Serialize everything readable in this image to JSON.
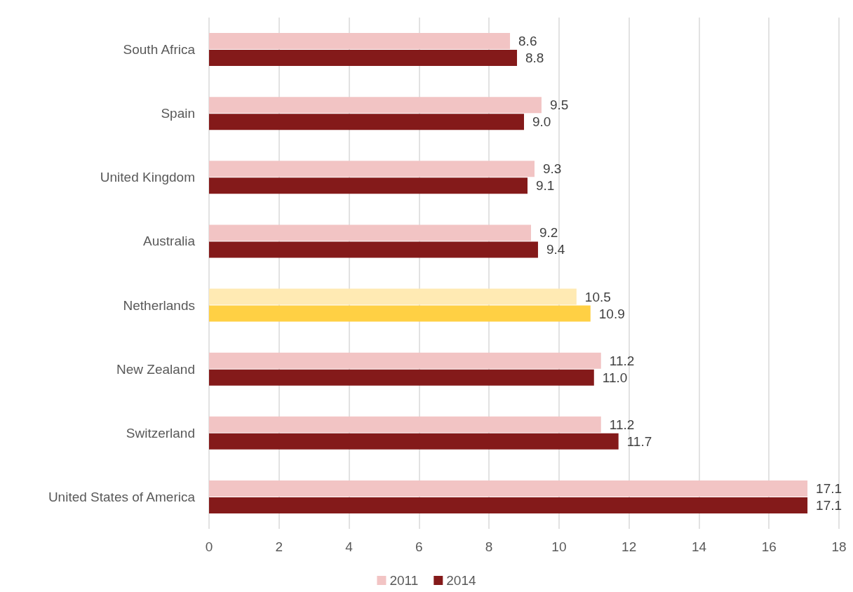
{
  "chart_data": {
    "type": "bar",
    "orientation": "horizontal",
    "categories": [
      "South Africa",
      "Spain",
      "United Kingdom",
      "Australia",
      "Netherlands",
      "New Zealand",
      "Switzerland",
      "United States of America"
    ],
    "series": [
      {
        "name": "2011",
        "color": "#f2c4c4",
        "colors": [
          "#f2c4c4",
          "#f2c4c4",
          "#f2c4c4",
          "#f2c4c4",
          "#ffeab3",
          "#f2c4c4",
          "#f2c4c4",
          "#f2c4c4"
        ],
        "values": [
          8.6,
          9.5,
          9.3,
          9.2,
          10.5,
          11.2,
          11.2,
          17.1
        ],
        "value_labels": [
          "8.6",
          "9.5",
          "9.3",
          "9.2",
          "10.5",
          "11.2",
          "11.2",
          "17.1"
        ]
      },
      {
        "name": "2014",
        "color": "#841a1a",
        "colors": [
          "#841a1a",
          "#841a1a",
          "#841a1a",
          "#841a1a",
          "#ffd044",
          "#841a1a",
          "#841a1a",
          "#841a1a"
        ],
        "values": [
          8.8,
          9.0,
          9.1,
          9.4,
          10.9,
          11.0,
          11.7,
          17.1
        ],
        "value_labels": [
          "8.8",
          "9.0",
          "9.1",
          "9.4",
          "10.9",
          "11.0",
          "11.7",
          "17.1"
        ]
      }
    ],
    "xlim": [
      0,
      18
    ],
    "xticks": [
      0,
      2,
      4,
      6,
      8,
      10,
      12,
      14,
      16,
      18
    ],
    "grid": "x",
    "legend": "bottom"
  }
}
